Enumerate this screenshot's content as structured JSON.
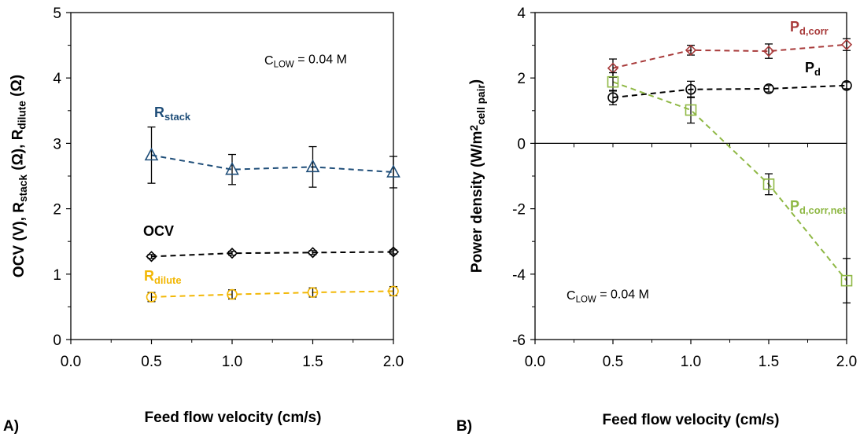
{
  "chart_data": [
    {
      "type": "line",
      "panel_label": "A)",
      "xlabel": "Feed flow velocity (cm/s)",
      "ylabel": {
        "parts": [
          {
            "t": "OCV (V), R"
          },
          {
            "t": "stack",
            "sub": true
          },
          {
            "t": " (Ω), R"
          },
          {
            "t": "dilute",
            "sub": true
          },
          {
            "t": " (Ω)"
          }
        ]
      },
      "xlim": [
        0,
        2
      ],
      "ylim": [
        0,
        5
      ],
      "xticks": [
        "0.0",
        "0.5",
        "1.0",
        "1.5",
        "2.0"
      ],
      "yticks": [
        "0",
        "1",
        "2",
        "3",
        "4",
        "5"
      ],
      "annotation": {
        "parts": [
          {
            "t": "C"
          },
          {
            "t": "LOW",
            "sub": true
          },
          {
            "t": " = 0.04 M"
          }
        ]
      },
      "series": [
        {
          "name": "R_stack",
          "label_parts": [
            {
              "t": "R"
            },
            {
              "t": "stack",
              "sub": true
            }
          ],
          "color": "#1f4e79",
          "marker": "triangle",
          "x": [
            0.5,
            1.0,
            1.5,
            2.0
          ],
          "y": [
            2.82,
            2.6,
            2.64,
            2.56
          ],
          "err": [
            0.43,
            0.23,
            0.31,
            0.24
          ]
        },
        {
          "name": "OCV",
          "label_parts": [
            {
              "t": "OCV"
            }
          ],
          "color": "#000000",
          "marker": "diamond",
          "x": [
            0.5,
            1.0,
            1.5,
            2.0
          ],
          "y": [
            1.27,
            1.32,
            1.33,
            1.34
          ],
          "err": [
            0.03,
            0.03,
            0.03,
            0.03
          ]
        },
        {
          "name": "R_dilute",
          "label_parts": [
            {
              "t": "R"
            },
            {
              "t": "dilute",
              "sub": true
            }
          ],
          "color": "#f2b705",
          "marker": "circle",
          "x": [
            0.5,
            1.0,
            1.5,
            2.0
          ],
          "y": [
            0.65,
            0.69,
            0.72,
            0.74
          ],
          "err": [
            0.07,
            0.07,
            0.07,
            0.07
          ]
        }
      ]
    },
    {
      "type": "line",
      "panel_label": "B)",
      "xlabel": "Feed flow velocity (cm/s)",
      "ylabel": {
        "parts": [
          {
            "t": "Power density (W/m"
          },
          {
            "t": "2",
            "sup": true
          },
          {
            "t": "cell pair",
            "sub": true
          },
          {
            "t": ")"
          }
        ]
      },
      "xlim": [
        0,
        2
      ],
      "ylim": [
        -6,
        4
      ],
      "xticks": [
        "0.0",
        "0.5",
        "1.0",
        "1.5",
        "2.0"
      ],
      "yticks": [
        "-6",
        "-4",
        "-2",
        "0",
        "2",
        "4"
      ],
      "annotation": {
        "parts": [
          {
            "t": "C"
          },
          {
            "t": "LOW",
            "sub": true
          },
          {
            "t": " = 0.04 M"
          }
        ]
      },
      "series": [
        {
          "name": "P_d,corr",
          "label_parts": [
            {
              "t": "P"
            },
            {
              "t": "d,corr",
              "sub": true
            }
          ],
          "color": "#a83a3a",
          "marker": "diamond",
          "x": [
            0.5,
            1.0,
            1.5,
            2.0
          ],
          "y": [
            2.3,
            2.85,
            2.82,
            3.02
          ],
          "err": [
            0.28,
            0.15,
            0.22,
            0.18
          ]
        },
        {
          "name": "P_d",
          "label_parts": [
            {
              "t": "P"
            },
            {
              "t": "d",
              "sub": true
            }
          ],
          "color": "#000000",
          "marker": "circle",
          "x": [
            0.5,
            1.0,
            1.5,
            2.0
          ],
          "y": [
            1.4,
            1.65,
            1.67,
            1.77
          ],
          "err": [
            0.22,
            0.25,
            0.1,
            0.1
          ]
        },
        {
          "name": "P_d,corr,net",
          "label_parts": [
            {
              "t": "P"
            },
            {
              "t": "d,corr,net",
              "sub": true
            }
          ],
          "color": "#8fb845",
          "marker": "square",
          "x": [
            0.5,
            1.0,
            1.5,
            2.0
          ],
          "y": [
            1.88,
            1.02,
            -1.25,
            -4.2
          ],
          "err": [
            0.28,
            0.4,
            0.32,
            0.68
          ]
        }
      ]
    }
  ]
}
